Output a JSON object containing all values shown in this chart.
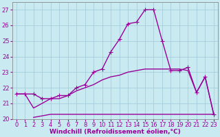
{
  "xlabel": "Windchill (Refroidissement éolien,°C)",
  "bg_color": "#c8eaf0",
  "grid_color": "#a0c8d8",
  "line_color": "#990099",
  "x_values": [
    0,
    1,
    2,
    3,
    4,
    5,
    6,
    7,
    8,
    9,
    10,
    11,
    12,
    13,
    14,
    15,
    16,
    17,
    18,
    19,
    20,
    21,
    22,
    23
  ],
  "line1_y": [
    21.6,
    21.6,
    21.6,
    21.3,
    21.3,
    21.5,
    21.5,
    22.0,
    22.2,
    23.0,
    23.2,
    24.3,
    25.1,
    26.1,
    26.2,
    27.0,
    27.0,
    25.0,
    23.1,
    23.1,
    23.3,
    21.7,
    22.7,
    20.3
  ],
  "line2_y": [
    21.6,
    21.6,
    20.7,
    21.0,
    21.3,
    21.3,
    21.5,
    21.8,
    22.0,
    22.2,
    22.5,
    22.7,
    22.8,
    23.0,
    23.1,
    23.2,
    23.2,
    23.2,
    23.2,
    23.2,
    23.1,
    21.7,
    22.7,
    20.3
  ],
  "line3_y": [
    null,
    null,
    20.1,
    20.2,
    20.3,
    20.3,
    20.3,
    20.3,
    20.3,
    20.3,
    20.3,
    20.3,
    20.3,
    20.3,
    20.3,
    20.3,
    20.3,
    20.3,
    20.3,
    20.3,
    20.3,
    20.3,
    20.3,
    20.3
  ],
  "ylim": [
    20,
    27.5
  ],
  "xlim": [
    -0.5,
    23.5
  ],
  "yticks": [
    20,
    21,
    22,
    23,
    24,
    25,
    26,
    27
  ],
  "xticks": [
    0,
    1,
    2,
    3,
    4,
    5,
    6,
    7,
    8,
    9,
    10,
    11,
    12,
    13,
    14,
    15,
    16,
    17,
    18,
    19,
    20,
    21,
    22,
    23
  ],
  "linewidth": 1.0,
  "marker": "+",
  "marker_size": 4,
  "font_size_label": 6.5,
  "font_size_tick": 6
}
